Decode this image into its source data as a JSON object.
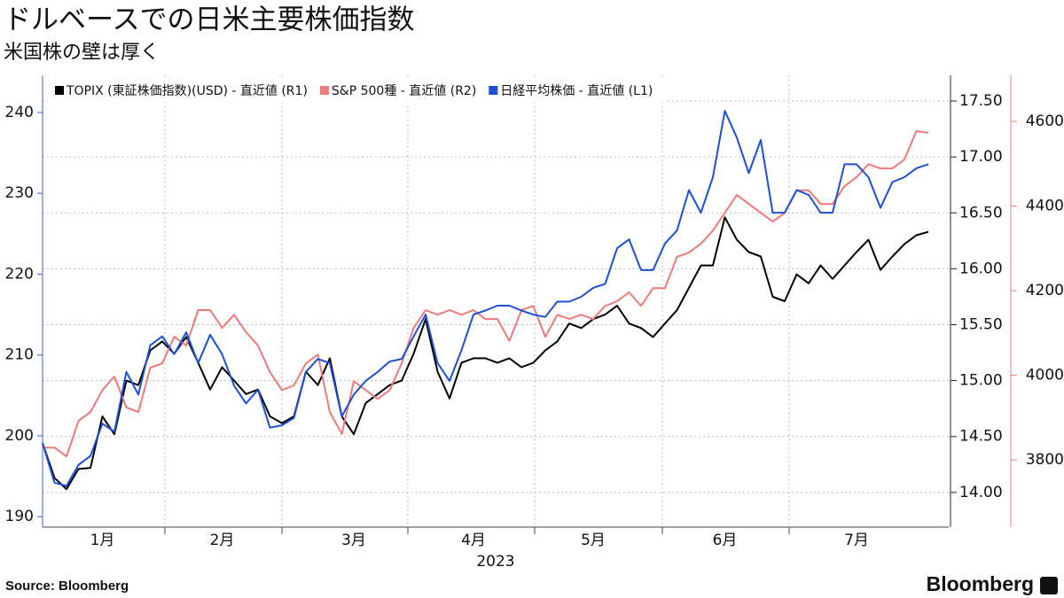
{
  "chart_data": {
    "type": "line",
    "title": "ドルベースでの日米主要株価指数",
    "subtitle": "米国株の壁は厚く",
    "xlabel": "2023",
    "source": "Source: Bloomberg",
    "logo": "Bloomberg",
    "categories": [
      null,
      null,
      null,
      null,
      null,
      "1月",
      null,
      null,
      null,
      null,
      null,
      null,
      null,
      null,
      null,
      "2月",
      null,
      null,
      null,
      null,
      null,
      null,
      null,
      null,
      null,
      null,
      "3月",
      null,
      null,
      null,
      null,
      null,
      null,
      null,
      null,
      null,
      "4月",
      null,
      null,
      null,
      null,
      null,
      null,
      null,
      null,
      null,
      "5月",
      null,
      null,
      null,
      null,
      null,
      null,
      null,
      null,
      null,
      null,
      "6月",
      null,
      null,
      null,
      null,
      null,
      null,
      null,
      null,
      null,
      null,
      "7月",
      null,
      null,
      null,
      null,
      null,
      null
    ],
    "series": [
      {
        "name": "TOPIX (東証株価指数)(USD) - 直近値 (R1)",
        "color": "#000000",
        "axis": "y2",
        "values": [
          14.44,
          14.13,
          14.03,
          14.21,
          14.22,
          14.68,
          14.52,
          15.0,
          14.96,
          15.27,
          15.35,
          15.24,
          15.39,
          15.16,
          14.92,
          15.12,
          15.0,
          14.88,
          14.92,
          14.68,
          14.62,
          14.68,
          15.08,
          14.96,
          15.2,
          14.68,
          14.52,
          14.8,
          14.88,
          14.96,
          15.0,
          15.24,
          15.55,
          15.08,
          14.84,
          15.16,
          15.2,
          15.2,
          15.16,
          15.2,
          15.12,
          15.16,
          15.27,
          15.35,
          15.51,
          15.47,
          15.55,
          15.59,
          15.67,
          15.51,
          15.47,
          15.39,
          15.51,
          15.63,
          15.83,
          16.03,
          16.03,
          16.46,
          16.26,
          16.15,
          16.11,
          15.75,
          15.71,
          15.95,
          15.87,
          16.03,
          15.91,
          16.03,
          16.15,
          16.26,
          15.99,
          16.11,
          16.22,
          16.3,
          16.33
        ]
      },
      {
        "name": "S&P 500種 - 直近値 (R2)",
        "color": "#f07878",
        "axis": "y3",
        "values": [
          3829,
          3829,
          3808,
          3892,
          3913,
          3965,
          3997,
          3924,
          3913,
          4018,
          4028,
          4091,
          4070,
          4154,
          4154,
          4112,
          4143,
          4102,
          4070,
          4007,
          3965,
          3976,
          4028,
          4049,
          3913,
          3861,
          3986,
          3965,
          3944,
          3965,
          4028,
          4112,
          4154,
          4143,
          4154,
          4143,
          4154,
          4133,
          4133,
          4081,
          4154,
          4164,
          4091,
          4143,
          4133,
          4143,
          4133,
          4164,
          4175,
          4196,
          4164,
          4206,
          4206,
          4280,
          4290,
          4311,
          4342,
          4384,
          4426,
          4405,
          4384,
          4363,
          4384,
          4437,
          4437,
          4405,
          4405,
          4447,
          4468,
          4499,
          4489,
          4489,
          4510,
          4577,
          4573
        ]
      },
      {
        "name": "日経平均株価 - 直近値 (L1)",
        "color": "#1a4fd6",
        "axis": "y",
        "values": [
          199.1,
          194.2,
          193.8,
          196.4,
          197.5,
          201.5,
          200.5,
          207.9,
          205.1,
          211.2,
          212.3,
          210.1,
          212.8,
          209.0,
          212.5,
          210.1,
          206.2,
          204.0,
          205.7,
          201.0,
          201.3,
          202.2,
          207.9,
          209.5,
          209.0,
          202.4,
          205.1,
          206.8,
          207.9,
          209.2,
          209.5,
          212.3,
          215.0,
          209.0,
          206.8,
          210.6,
          215.0,
          215.5,
          216.1,
          216.1,
          215.5,
          215.0,
          214.7,
          216.6,
          216.6,
          217.2,
          218.3,
          218.8,
          223.2,
          224.3,
          220.5,
          220.5,
          223.8,
          225.4,
          230.4,
          227.6,
          232.0,
          240.2,
          236.9,
          232.5,
          236.6,
          227.6,
          227.6,
          230.4,
          229.8,
          227.6,
          227.6,
          233.6,
          233.6,
          232.0,
          228.2,
          231.4,
          232.0,
          233.1,
          233.6
        ]
      }
    ],
    "ylim": [
      188.7,
      244.6
    ],
    "yticks": [
      190,
      200,
      210,
      220,
      230,
      240
    ],
    "y2lim": [
      13.69,
      17.73
    ],
    "y2ticks": [
      {
        "value": 14,
        "label": "14.00"
      },
      {
        "value": 14.5,
        "label": "14.50"
      },
      {
        "value": 15,
        "label": "15.00"
      },
      {
        "value": 15.5,
        "label": "15.50"
      },
      {
        "value": 16,
        "label": "16.00"
      },
      {
        "value": 16.5,
        "label": "16.50"
      },
      {
        "value": 17,
        "label": "17.00"
      },
      {
        "value": 17.5,
        "label": "17.50"
      }
    ],
    "y3lim": [
      3641,
      4709
    ],
    "y3ticks": [
      3800,
      4000,
      4200,
      4400,
      4600
    ],
    "grid": true
  }
}
